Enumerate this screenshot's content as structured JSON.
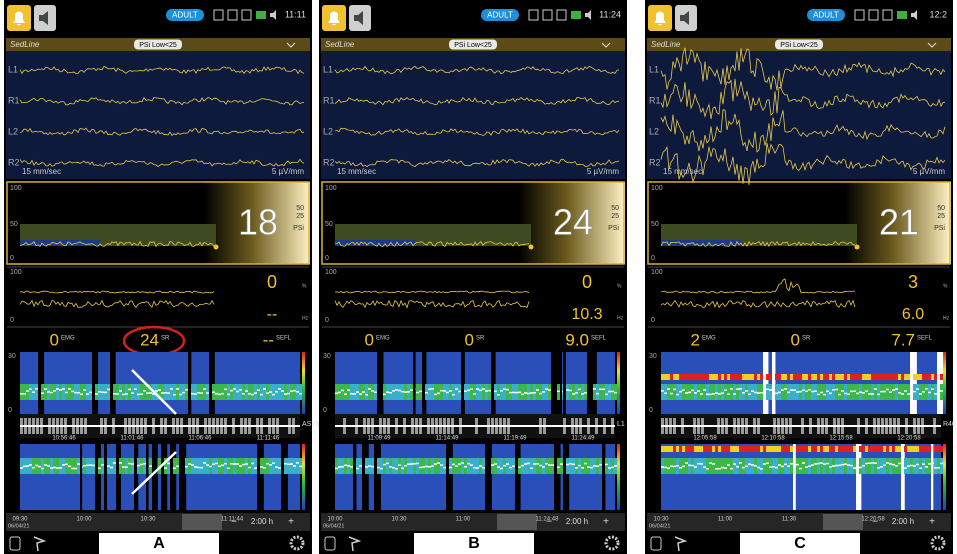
{
  "common": {
    "mode": "ADULT",
    "tab": "SedLine",
    "alarm": "PSi Low<25",
    "channels": [
      "L1",
      "R1",
      "L2",
      "R2"
    ],
    "speed": "15 mm/sec",
    "gain": "5 µV/mm",
    "psi_label": "PSi",
    "psi_scale": [
      "50",
      "25"
    ],
    "trend_scale": [
      "100",
      "50",
      "0"
    ],
    "emg": "EMG",
    "sr": "SR",
    "sefl": "SEFL",
    "pct": "%",
    "hz": "Hz",
    "dsa_scale": [
      "30",
      "0"
    ],
    "minus": "−",
    "plus": "+",
    "zoom": "2:00 h",
    "date": "06/04/21"
  },
  "panels": [
    {
      "label": "A",
      "clock": "11:11",
      "psi": "18",
      "artf": "0",
      "sefl_top": "--",
      "emg": "0",
      "sr": "24",
      "sefl": "--",
      "asym": "ASYM",
      "dsa_times": [
        "10:56:46",
        "11:01:46",
        "11:06:46",
        "11:11:46"
      ],
      "timeline": [
        "09:30",
        "10:00",
        "10:30",
        "11:11:44"
      ]
    },
    {
      "label": "B",
      "clock": "11:24",
      "psi": "24",
      "artf": "0",
      "sefl_top": "10.3",
      "emg": "0",
      "sr": "0",
      "sefl": "9.0",
      "asym": "L1",
      "dsa_times": [
        "11:09:49",
        "11:14:49",
        "11:19:49",
        "11:24:49"
      ],
      "timeline": [
        "10:00",
        "10:30",
        "11:00",
        "11:24:48"
      ]
    },
    {
      "label": "C",
      "clock": "12:2",
      "psi": "21",
      "artf": "3",
      "sefl_top": "6.0",
      "emg": "2",
      "sr": "0",
      "sefl": "7.7",
      "asym": "R40",
      "dsa_times": [
        "12:05:58",
        "12:10:58",
        "12:15:58",
        "12:20:58"
      ],
      "timeline": [
        "10:30",
        "11:00",
        "11:30",
        "12:20:58"
      ]
    }
  ]
}
